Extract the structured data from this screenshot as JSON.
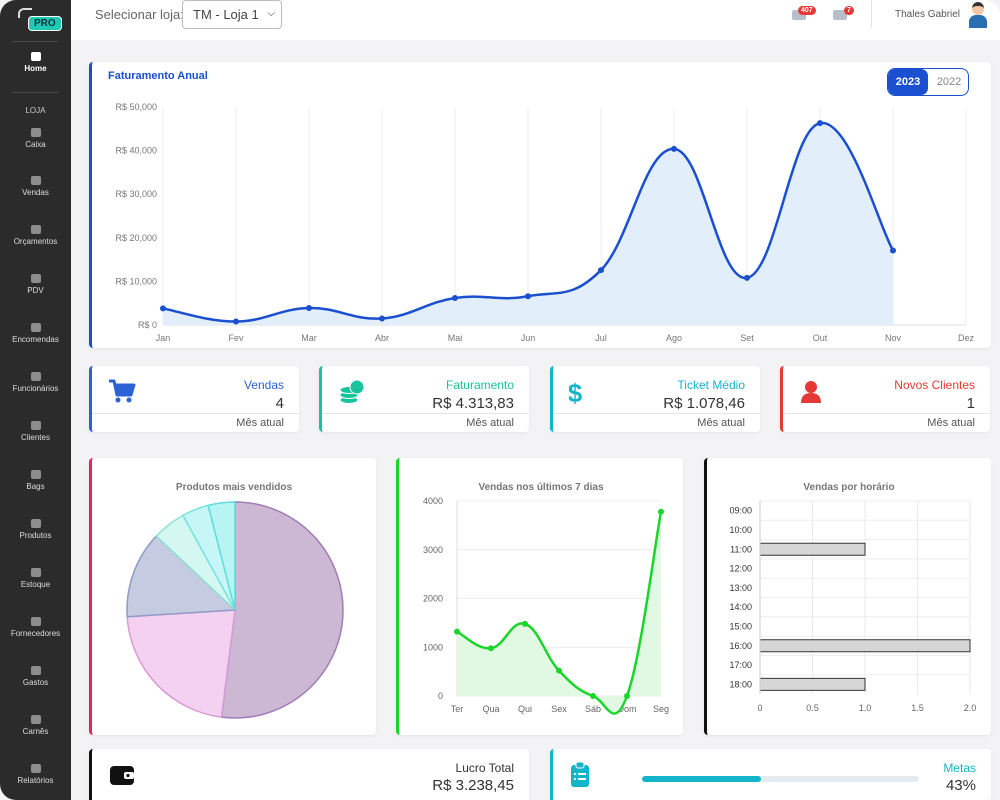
{
  "app": {
    "logo_badge": "PRO",
    "nav": {
      "section": "LOJA",
      "items": [
        {
          "label": "Home",
          "icon": "home-icon"
        },
        {
          "label": "Caixa",
          "icon": "cash-register-icon"
        },
        {
          "label": "Vendas",
          "icon": "cart-icon"
        },
        {
          "label": "Orçamentos",
          "icon": "document-icon"
        },
        {
          "label": "PDV",
          "icon": "basket-icon"
        },
        {
          "label": "Encomendas",
          "icon": "box-icon"
        },
        {
          "label": "Funcionários",
          "icon": "user-icon"
        },
        {
          "label": "Clientes",
          "icon": "users-icon"
        },
        {
          "label": "Bags",
          "icon": "bag-icon"
        },
        {
          "label": "Produtos",
          "icon": "tag-icon"
        },
        {
          "label": "Estoque",
          "icon": "boxes-icon"
        },
        {
          "label": "Fornecedores",
          "icon": "truck-icon"
        },
        {
          "label": "Gastos",
          "icon": "coins-icon"
        },
        {
          "label": "Carnês",
          "icon": "card-icon"
        },
        {
          "label": "Relatórios",
          "icon": "chart-icon"
        }
      ]
    }
  },
  "topbar": {
    "store_label": "Selecionar loja:",
    "store_value": "TM - Loja 1",
    "notifications_count": "407",
    "messages_count": "7",
    "user_name": "Thales Gabriel"
  },
  "annual": {
    "title": "Faturamento Anual",
    "year_active": "2023",
    "year_other": "2022"
  },
  "kpis": [
    {
      "label": "Vendas",
      "value": "4",
      "foot": "Mês atual",
      "color": "#2b63d6",
      "icon": "cart-icon"
    },
    {
      "label": "Faturamento",
      "value": "R$ 4.313,83",
      "foot": "Mês atual",
      "color": "#19c39c",
      "icon": "coins-icon"
    },
    {
      "label": "Ticket Médio",
      "value": "R$ 1.078,46",
      "foot": "Mês atual",
      "color": "#14b4c9",
      "icon": "dollar-icon"
    },
    {
      "label": "Novos Clientes",
      "value": "1",
      "foot": "Mês atual",
      "color": "#e53935",
      "icon": "user-icon"
    }
  ],
  "bottom": {
    "profit_label": "Lucro Total",
    "profit_value": "R$ 3.238,45",
    "goals_label": "Metas",
    "goals_value": "43%",
    "goals_progress": 0.43
  },
  "chart_data": [
    {
      "type": "area",
      "title": "Faturamento Anual",
      "categories": [
        "Jan",
        "Fev",
        "Mar",
        "Abr",
        "Mai",
        "Jun",
        "Jul",
        "Ago",
        "Set",
        "Out",
        "Nov",
        "Dez"
      ],
      "values": [
        3800,
        800,
        3900,
        1500,
        6200,
        6600,
        12600,
        40400,
        10800,
        46300,
        17100,
        null
      ],
      "y_tick_labels": [
        "R$ 0",
        "R$ 10,000",
        "R$ 20,000",
        "R$ 30,000",
        "R$ 40,000",
        "R$ 50,000"
      ],
      "ylim": [
        0,
        50000
      ],
      "color": "#1a4fd0",
      "grid": true
    },
    {
      "type": "pie",
      "title": "Produtos mais vendidos",
      "values": [
        52,
        22,
        13,
        5,
        4,
        4
      ],
      "colors": [
        "#cdb8d4",
        "#f5d1f1",
        "#c5cbe0",
        "#d5f7f1",
        "#c6f7f6",
        "#b8f4f4"
      ],
      "stroke_colors": [
        "#a07cb8",
        "#d99ad6",
        "#8f9cc8",
        "#8fe1d3",
        "#76e3e2",
        "#5fdcdc"
      ]
    },
    {
      "type": "area",
      "title": "Vendas nos últimos 7 dias",
      "categories": [
        "Ter",
        "Qua",
        "Qui",
        "Sex",
        "Sáb",
        "Dom",
        "Seg"
      ],
      "values": [
        1320,
        980,
        1480,
        520,
        0,
        0,
        3780
      ],
      "ylim": [
        0,
        4000
      ],
      "y_ticks": [
        0,
        1000,
        2000,
        3000,
        4000
      ],
      "color": "#1ad62a",
      "grid": true
    },
    {
      "type": "bar",
      "orientation": "horizontal",
      "title": "Vendas por horário",
      "categories": [
        "09:00",
        "10:00",
        "11:00",
        "12:00",
        "13:00",
        "14:00",
        "15:00",
        "16:00",
        "17:00",
        "18:00"
      ],
      "values": [
        0,
        0,
        1,
        0,
        0,
        0,
        0,
        2,
        0,
        1
      ],
      "xlim": [
        0,
        2
      ],
      "x_ticks": [
        "0",
        "0.5",
        "1.0",
        "1.5",
        "2.0"
      ],
      "color": "#d6d6d6",
      "grid": true
    }
  ]
}
